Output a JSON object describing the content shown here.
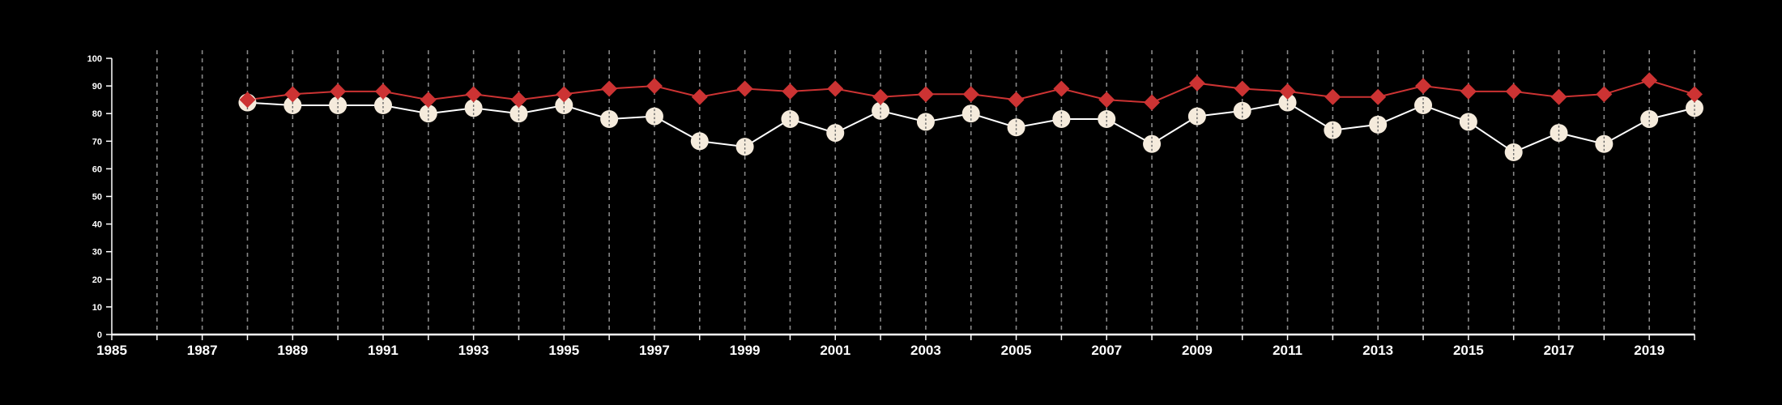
{
  "chart_data": {
    "type": "line",
    "title": "",
    "xlabel": "",
    "ylabel": "",
    "xlim": [
      1985,
      2020
    ],
    "ylim": [
      0,
      100
    ],
    "x_ticks": [
      1985,
      1987,
      1989,
      1991,
      1993,
      1995,
      1997,
      1999,
      2001,
      2003,
      2005,
      2007,
      2009,
      2011,
      2013,
      2015,
      2017,
      2019
    ],
    "y_ticks": [
      0,
      10,
      20,
      30,
      40,
      50,
      60,
      70,
      80,
      90,
      100
    ],
    "grid": "vertical dashed lines at every year",
    "x": [
      1988,
      1989,
      1990,
      1991,
      1992,
      1993,
      1994,
      1995,
      1996,
      1997,
      1998,
      1999,
      2000,
      2001,
      2002,
      2003,
      2004,
      2005,
      2006,
      2007,
      2008,
      2009,
      2010,
      2011,
      2012,
      2013,
      2014,
      2015,
      2016,
      2017,
      2018,
      2019,
      2020
    ],
    "series": [
      {
        "marker": "diamond",
        "color": "#cc3333",
        "values": [
          85,
          87,
          88,
          88,
          85,
          87,
          85,
          87,
          89,
          90,
          86,
          89,
          88,
          89,
          86,
          87,
          87,
          85,
          89,
          85,
          84,
          91,
          89,
          88,
          86,
          86,
          90,
          88,
          88,
          86,
          87,
          92,
          87
        ]
      },
      {
        "marker": "circle",
        "color": "#f5ebdc",
        "values": [
          84,
          83,
          83,
          83,
          80,
          82,
          80,
          83,
          78,
          79,
          70,
          68,
          78,
          73,
          81,
          77,
          80,
          75,
          78,
          78,
          69,
          79,
          81,
          84,
          74,
          76,
          83,
          77,
          66,
          73,
          69,
          78,
          82
        ]
      }
    ]
  },
  "colors": {
    "background": "#000000",
    "axis": "#ffffff",
    "grid": "#888888"
  }
}
